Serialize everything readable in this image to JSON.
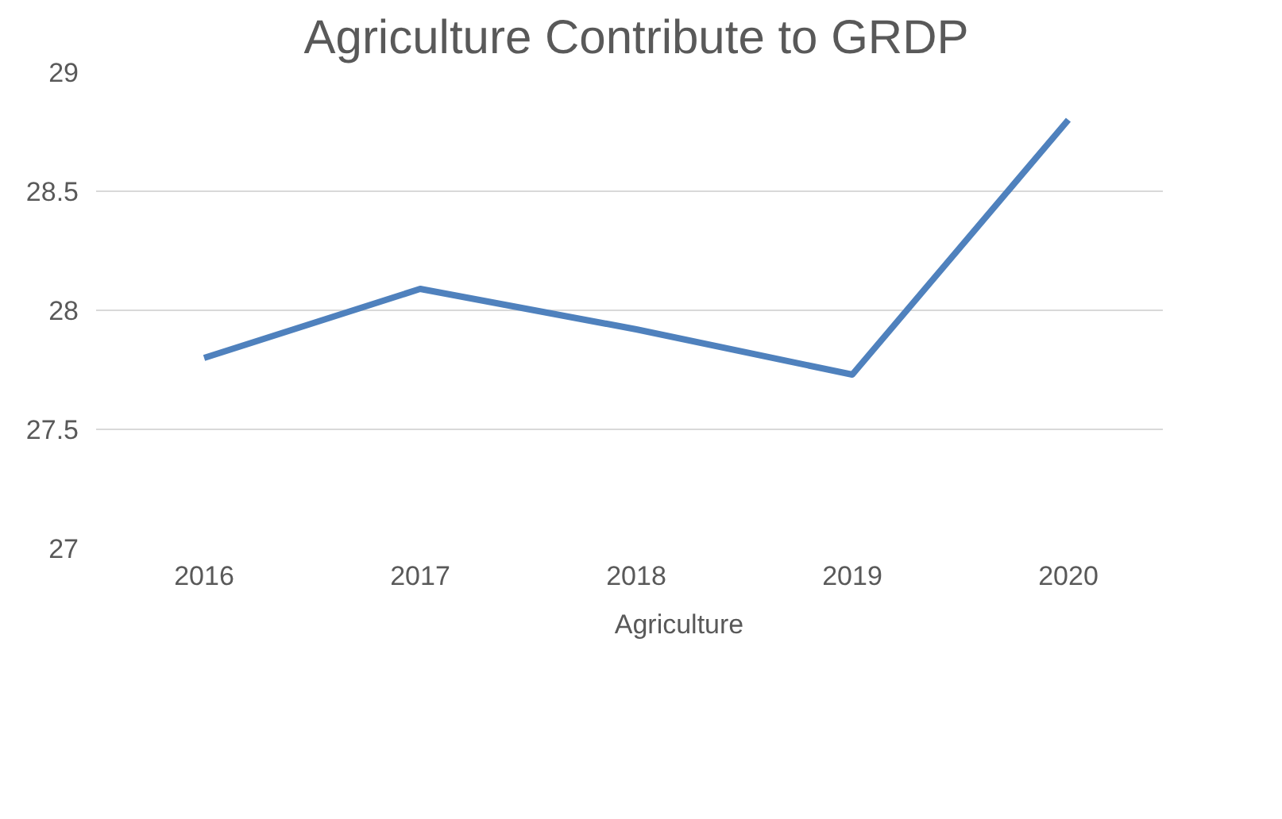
{
  "chart_data": {
    "type": "line",
    "title": "Agriculture Contribute to GRDP",
    "categories": [
      "2016",
      "2017",
      "2018",
      "2019",
      "2020"
    ],
    "series": [
      {
        "name": "Agriculture",
        "color": "#4f81bd",
        "values": [
          27.8,
          28.09,
          27.92,
          27.73,
          28.8
        ]
      }
    ],
    "ylim": [
      27,
      29
    ],
    "yticks": [
      27,
      27.5,
      28,
      28.5,
      29
    ],
    "grid": "y",
    "legend": "bottom",
    "marker": "none",
    "line_style": "solid"
  }
}
